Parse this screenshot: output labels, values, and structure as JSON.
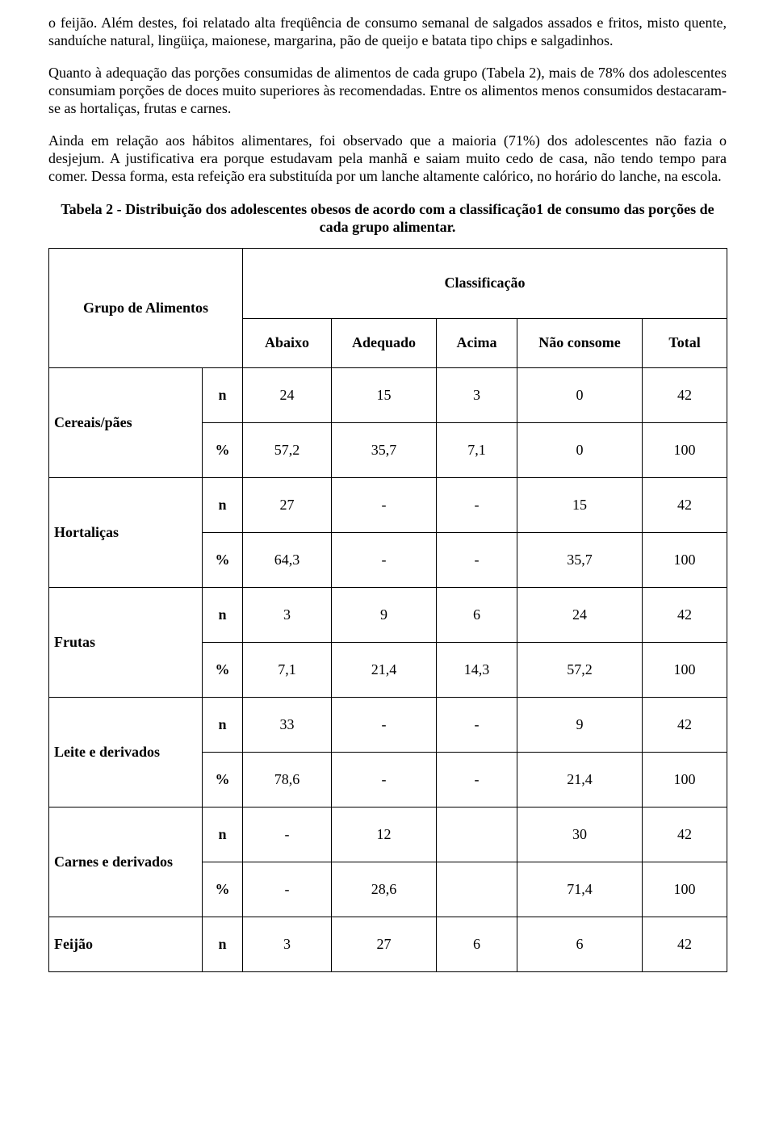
{
  "paragraphs": {
    "p1": "o feijão. Além destes, foi relatado alta freqüência de consumo semanal de salgados assados e fritos, misto quente, sanduíche natural, lingüiça, maionese, margarina, pão de queijo e batata tipo chips e salgadinhos.",
    "p2": "Quanto à adequação das porções consumidas de alimentos de cada grupo (Tabela 2), mais de 78% dos adolescentes consumiam porções de doces muito superiores às recomendadas. Entre os alimentos menos consumidos destacaram-se as hortaliças, frutas e carnes.",
    "p3": "Ainda em relação aos hábitos alimentares, foi observado que a maioria (71%) dos adolescentes não fazia o desjejum. A justificativa era porque estudavam pela manhã e saiam muito cedo de casa, não tendo tempo para comer. Dessa forma, esta refeição era substituída por um lanche altamente calórico, no horário do lanche, na escola."
  },
  "table": {
    "caption": "Tabela 2 - Distribuição dos adolescentes obesos de acordo com a classificação1 de consumo das porções de cada grupo alimentar.",
    "header_group": "Grupo de Alimentos",
    "header_class": "Classificação",
    "subheaders": {
      "c1": "Abaixo",
      "c2": "Adequado",
      "c3": "Acima",
      "c4": "Não consome",
      "c5": "Total"
    },
    "unit_n": "n",
    "unit_pct": "%",
    "rows": [
      {
        "name": "Cereais/pães",
        "n": {
          "abaixo": "24",
          "adequado": "15",
          "acima": "3",
          "nao": "0",
          "total": "42"
        },
        "p": {
          "abaixo": "57,2",
          "adequado": "35,7",
          "acima": "7,1",
          "nao": "0",
          "total": "100"
        }
      },
      {
        "name": "Hortaliças",
        "n": {
          "abaixo": "27",
          "adequado": "-",
          "acima": "-",
          "nao": "15",
          "total": "42"
        },
        "p": {
          "abaixo": "64,3",
          "adequado": "-",
          "acima": "-",
          "nao": "35,7",
          "total": "100"
        }
      },
      {
        "name": "Frutas",
        "n": {
          "abaixo": "3",
          "adequado": "9",
          "acima": "6",
          "nao": "24",
          "total": "42"
        },
        "p": {
          "abaixo": "7,1",
          "adequado": "21,4",
          "acima": "14,3",
          "nao": "57,2",
          "total": "100"
        }
      },
      {
        "name": "Leite e derivados",
        "n": {
          "abaixo": "33",
          "adequado": "-",
          "acima": "-",
          "nao": "9",
          "total": "42"
        },
        "p": {
          "abaixo": "78,6",
          "adequado": "-",
          "acima": "-",
          "nao": "21,4",
          "total": "100"
        }
      },
      {
        "name": "Carnes e derivados",
        "n": {
          "abaixo": "-",
          "adequado": "12",
          "acima": "",
          "nao": "30",
          "total": "42"
        },
        "p": {
          "abaixo": "-",
          "adequado": "28,6",
          "acima": "",
          "nao": "71,4",
          "total": "100"
        }
      },
      {
        "name": "Feijão",
        "n": {
          "abaixo": "3",
          "adequado": "27",
          "acima": "6",
          "nao": "6",
          "total": "42"
        }
      }
    ]
  }
}
